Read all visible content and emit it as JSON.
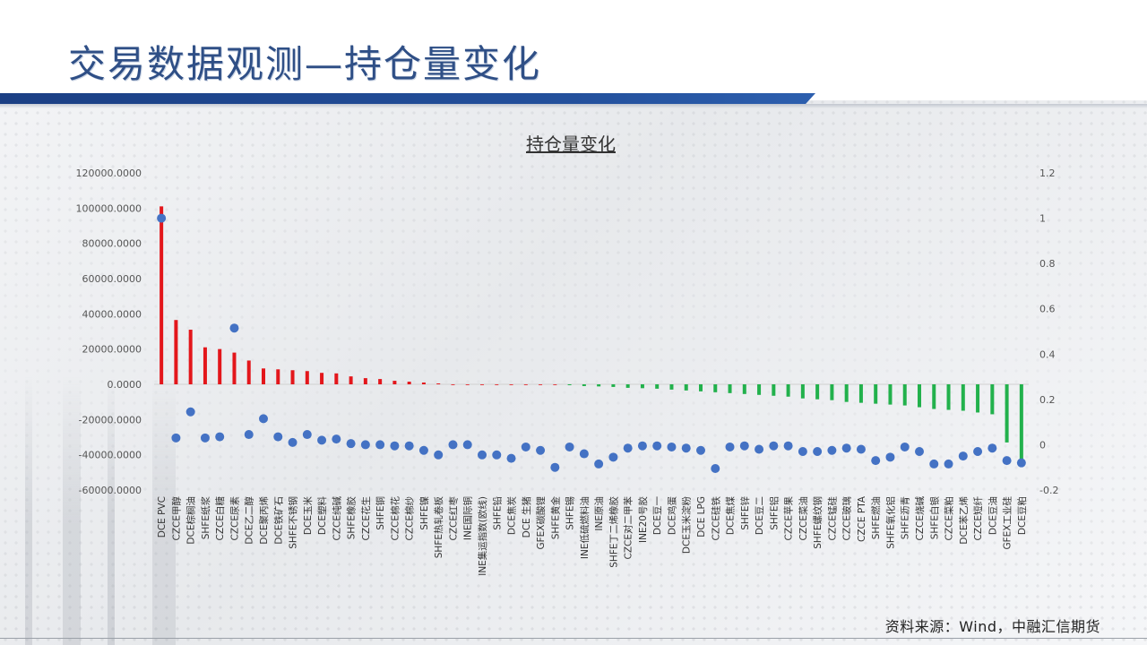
{
  "slide": {
    "title": "交易数据观测—持仓量变化",
    "source": "资料来源：Wind，中融汇信期货"
  },
  "colors": {
    "title": "#2f4f86",
    "band": "#1b3f84",
    "positive_bar": "#e3161b",
    "negative_bar": "#22b14c",
    "dots": "#4472c4"
  },
  "chart_data": {
    "type": "bar",
    "title": "持仓量变化",
    "left_axis": {
      "ylim": [
        -60000,
        120000
      ],
      "ticks": [
        "120000.0000",
        "100000.0000",
        "80000.0000",
        "60000.0000",
        "40000.0000",
        "20000.0000",
        "0.0000",
        "-20000.0000",
        "-40000.0000",
        "-60000.0000"
      ]
    },
    "right_axis": {
      "ylim": [
        -0.2,
        1.2
      ],
      "ticks": [
        "1.2",
        "1",
        "0.8",
        "0.6",
        "0.4",
        "0.2",
        "0",
        "-0.2"
      ]
    },
    "grid": false,
    "categories": [
      "DCE PVC",
      "CZCE甲醇",
      "DCE棕榈油",
      "SHFE纸浆",
      "CZCE白糖",
      "CZCE尿素",
      "DCE乙二醇",
      "DCE聚丙烯",
      "DCE铁矿石",
      "SHFE不锈钢",
      "DCE玉米",
      "DCE塑料",
      "CZCE纯碱",
      "SHFE橡胶",
      "CZCE花生",
      "SHFE铜",
      "CZCE棉花",
      "CZCE棉纱",
      "SHFE镍",
      "SHFE热轧卷板",
      "CZCE红枣",
      "INE国际铜",
      "INE集运指数(欧线)",
      "SHFE铅",
      "DCE焦炭",
      "DCE 生猪",
      "GFEX碳酸锂",
      "SHFE黄金",
      "SHFE锡",
      "INE低硫燃料油",
      "INE原油",
      "SHFE丁二烯橡胶",
      "CZCE对二甲苯",
      "INE20号胶",
      "DCE豆一",
      "DCE鸡蛋",
      "DCE玉米淀粉",
      "DCE LPG",
      "CZCE硅铁",
      "DCE焦煤",
      "SHFE锌",
      "DCE豆二",
      "SHFE铝",
      "CZCE苹果",
      "CZCE菜油",
      "SHFE螺纹钢",
      "CZCE锰硅",
      "CZCE玻璃",
      "CZCE PTA",
      "SHFE燃油",
      "SHFE氧化铝",
      "SHFE沥青",
      "CZCE烧碱",
      "SHFE白银",
      "CZCE菜粕",
      "DCE苯乙烯",
      "CZCE短纤",
      "DCE豆油",
      "GFEX工业硅",
      "DCE豆粕"
    ],
    "series": [
      {
        "axis": "left",
        "values": [
          101000,
          36500,
          31000,
          21000,
          20000,
          18000,
          13500,
          9000,
          8500,
          8000,
          7500,
          6500,
          6200,
          4500,
          3500,
          3000,
          2000,
          1500,
          1000,
          500,
          0,
          0,
          0,
          0,
          0,
          0,
          0,
          0,
          -500,
          -1000,
          -1200,
          -1500,
          -2000,
          -2200,
          -2500,
          -3000,
          -3500,
          -4000,
          -4500,
          -5000,
          -5500,
          -6000,
          -6500,
          -7000,
          -8000,
          -8500,
          -9000,
          -10000,
          -10500,
          -11000,
          -11500,
          -12000,
          -13000,
          -14000,
          -14500,
          -15000,
          -16000,
          -17000,
          -33000,
          -46000
        ]
      },
      {
        "axis": "right",
        "values": [
          1.0,
          0.03,
          0.145,
          0.03,
          0.035,
          0.515,
          0.045,
          0.115,
          0.035,
          0.01,
          0.045,
          0.02,
          0.025,
          0.005,
          0.0,
          0.0,
          -0.005,
          -0.005,
          -0.025,
          -0.045,
          0.0,
          0.0,
          -0.045,
          -0.045,
          -0.06,
          -0.01,
          -0.025,
          -0.1,
          -0.01,
          -0.04,
          -0.085,
          -0.055,
          -0.015,
          -0.005,
          -0.005,
          -0.01,
          -0.015,
          -0.025,
          -0.105,
          -0.01,
          -0.005,
          -0.02,
          -0.005,
          -0.005,
          -0.03,
          -0.03,
          -0.025,
          -0.015,
          -0.02,
          -0.07,
          -0.055,
          -0.01,
          -0.03,
          -0.085,
          -0.085,
          -0.05,
          -0.03,
          -0.015,
          -0.07,
          -0.08
        ]
      }
    ]
  }
}
